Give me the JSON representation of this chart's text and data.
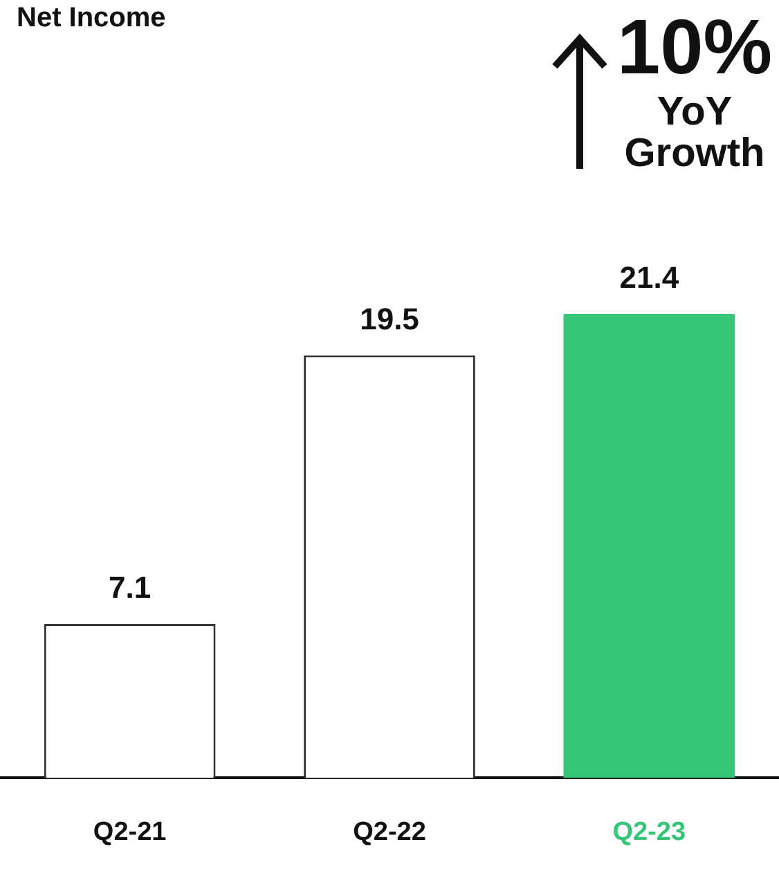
{
  "chart_data": {
    "type": "bar",
    "title": "Net Income",
    "categories": [
      "Q2-21",
      "Q2-22",
      "Q2-23"
    ],
    "values": [
      7.1,
      19.5,
      21.4
    ],
    "colors": [
      "#ffffff",
      "#ffffff",
      "#35c579"
    ],
    "data_labels": true,
    "grid": false,
    "legend": false,
    "annotations": [
      "10%",
      "YoY Growth"
    ]
  }
}
